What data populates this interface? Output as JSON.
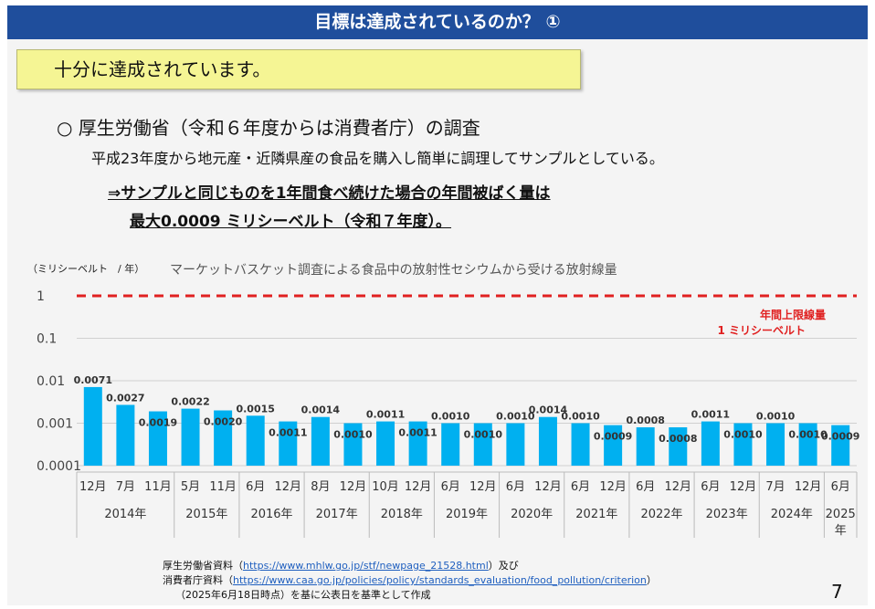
{
  "slide": {
    "title": "目標は達成されているのか？ ①",
    "callout": "十分に達成されています。",
    "heading": "○ 厚生労働省（令和６年度からは消費者庁）の調査",
    "subtext": "平成23年度から地元産・近隣県産の食品を購入し簡単に調理してサンプルとしている。",
    "highlight_line1": "⇒サンプルと同じものを1年間食べ続けた場合の年間被ばく量は",
    "highlight_line2": "最大0.0009 ミリシーベルト（令和７年度）。",
    "page_number": "7"
  },
  "footnotes": {
    "line1_prefix": "厚生労働省資料（",
    "line1_link": "https://www.mhlw.go.jp/stf/newpage_21528.html",
    "line1_suffix": "）及び",
    "line2_prefix": "消費者庁資料（",
    "line2_link": "https://www.caa.go.jp/policies/policy/standards_evaluation/food_pollution/criterion",
    "line2_suffix": "）",
    "line3": "（2025年6月18日時点）を基に公表日を基準として作成"
  },
  "colors": {
    "title_bar": "#1f4e9c",
    "bar": "#00b0f0",
    "limit_line": "#e02020",
    "callout_bg": "#f5f594"
  },
  "chart_data": {
    "type": "bar",
    "title": "マーケットバスケット調査による食品中の放射性セシウムから受ける放射線量",
    "ylabel": "（ミリシーベルト　/ 年）",
    "yscale": "log",
    "ylim": [
      0.0001,
      1
    ],
    "yticks": [
      "1",
      "0.1",
      "0.01",
      "0.001",
      "0.0001"
    ],
    "grid": true,
    "categories": [
      "12月",
      "7月",
      "11月",
      "5月",
      "11月",
      "6月",
      "12月",
      "8月",
      "12月",
      "10月",
      "12月",
      "6月",
      "12月",
      "6月",
      "12月",
      "6月",
      "12月",
      "6月",
      "12月",
      "6月",
      "12月",
      "7月",
      "12月",
      "6月"
    ],
    "values": [
      0.0071,
      0.0027,
      0.0019,
      0.0022,
      0.002,
      0.0015,
      0.0011,
      0.0014,
      0.001,
      0.0011,
      0.0011,
      0.001,
      0.001,
      0.001,
      0.0014,
      0.001,
      0.0009,
      0.0008,
      0.0008,
      0.0011,
      0.001,
      0.001,
      0.001,
      0.0009
    ],
    "value_labels": [
      "0.0071",
      "0.0027",
      "0.0019",
      "0.0022",
      "0.0020",
      "0.0015",
      "0.0011",
      "0.0014",
      "0.0010",
      "0.0011",
      "0.0011",
      "0.0010",
      "0.0010",
      "0.0010",
      "0.0014",
      "0.0010",
      "0.0009",
      "0.0008",
      "0.0008",
      "0.0011",
      "0.0010",
      "0.0010",
      "0.0010",
      "0.0009"
    ],
    "year_groups": [
      {
        "label": "2014年",
        "count": 3
      },
      {
        "label": "2015年",
        "count": 2
      },
      {
        "label": "2016年",
        "count": 2
      },
      {
        "label": "2017年",
        "count": 2
      },
      {
        "label": "2018年",
        "count": 2
      },
      {
        "label": "2019年",
        "count": 2
      },
      {
        "label": "2020年",
        "count": 2
      },
      {
        "label": "2021年",
        "count": 2
      },
      {
        "label": "2022年",
        "count": 2
      },
      {
        "label": "2023年",
        "count": 2
      },
      {
        "label": "2024年",
        "count": 2
      },
      {
        "label": "2025\n年",
        "count": 1
      }
    ],
    "reference_line": {
      "value": 1,
      "label1": "年間上限線量",
      "label2": "1 ミリシーベルト"
    }
  }
}
